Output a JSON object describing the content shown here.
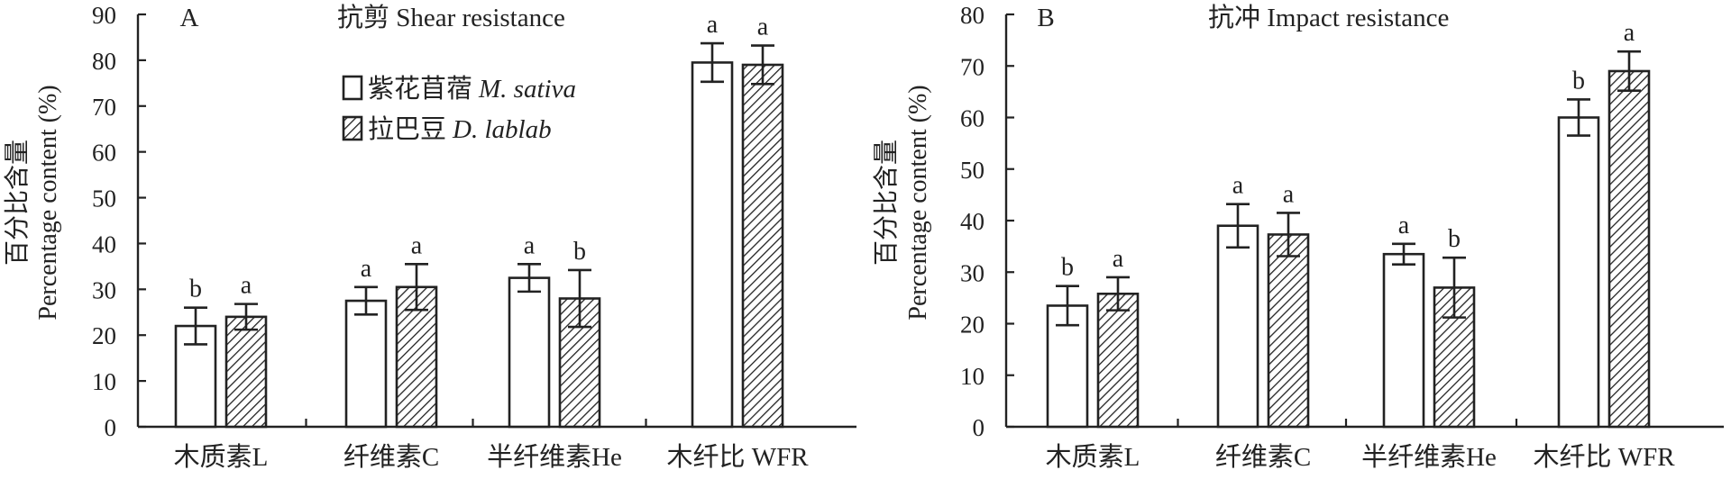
{
  "chart_data": [
    {
      "type": "bar",
      "panel_letter": "A",
      "title": "抗剪 Shear resistance",
      "ylabel_cn": "百分比含量",
      "ylabel_en": "Percentage content (%)",
      "ylim": [
        0,
        90
      ],
      "yticks": [
        0,
        10,
        20,
        30,
        40,
        50,
        60,
        70,
        80,
        90
      ],
      "categories": [
        "木质素L",
        "纤维素C",
        "半纤维素He",
        "木纤比 WFR"
      ],
      "series": [
        {
          "name": "紫花苜蓿 M. sativa",
          "values": [
            22,
            27.5,
            32.5,
            79.5
          ],
          "errors": [
            4,
            3,
            3,
            4.2
          ],
          "labels": [
            "b",
            "a",
            "a",
            "a"
          ]
        },
        {
          "name": "拉巴豆 D. lablab",
          "values": [
            24,
            30.5,
            28,
            79
          ],
          "errors": [
            2.8,
            5,
            6.2,
            4.2
          ],
          "labels": [
            "a",
            "a",
            "b",
            "a"
          ]
        }
      ]
    },
    {
      "type": "bar",
      "panel_letter": "B",
      "title": "抗冲 Impact resistance",
      "ylabel_cn": "百分比含量",
      "ylabel_en": "Percentage content (%)",
      "ylim": [
        0,
        80
      ],
      "yticks": [
        0,
        10,
        20,
        30,
        40,
        50,
        60,
        70,
        80
      ],
      "categories": [
        "木质素L",
        "纤维素C",
        "半纤维素He",
        "木纤比 WFR"
      ],
      "series": [
        {
          "name": "紫花苜蓿 M. sativa",
          "values": [
            23.5,
            39,
            33.5,
            60
          ],
          "errors": [
            3.8,
            4.2,
            2,
            3.5
          ],
          "labels": [
            "b",
            "a",
            "a",
            "b"
          ]
        },
        {
          "name": "拉巴豆 D. lablab",
          "values": [
            25.8,
            37.3,
            27,
            69
          ],
          "errors": [
            3.2,
            4.2,
            5.8,
            3.8
          ],
          "labels": [
            "a",
            "a",
            "b",
            "a"
          ]
        }
      ]
    }
  ],
  "legend": [
    {
      "cn": "紫花苜蓿",
      "en": "M. sativa"
    },
    {
      "cn": "拉巴豆",
      "en": "D. lablab"
    }
  ]
}
